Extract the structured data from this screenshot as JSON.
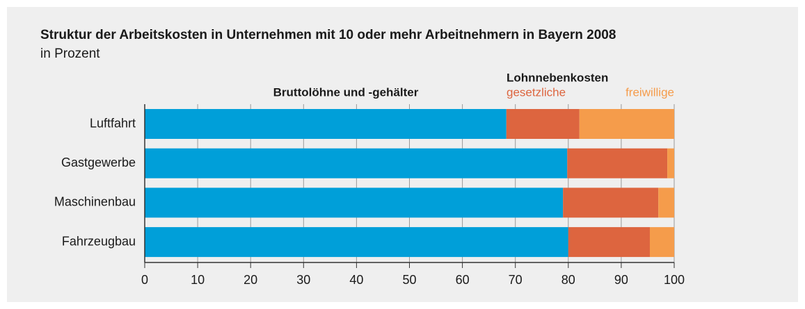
{
  "chart_data": {
    "type": "stacked-barh",
    "title": "Struktur der Arbeitskosten in Unternehmen mit 10 oder mehr Arbeitnehmern in Bayern 2008",
    "subtitle": "in Prozent",
    "legend_group": "Lohnnebenkosten",
    "categories": [
      "Luftfahrt",
      "Gastgewerbe",
      "Maschinenbau",
      "Fahrzeugbau"
    ],
    "series": [
      {
        "name": "Bruttolöhne und -gehälter",
        "color": "#009fd9",
        "values": [
          68.3,
          79.8,
          79.0,
          80.0
        ]
      },
      {
        "name": "gesetzliche",
        "color": "#dd653f",
        "values": [
          13.8,
          18.9,
          18.0,
          15.4
        ]
      },
      {
        "name": "freiwillige",
        "color": "#f59c4b",
        "values": [
          17.9,
          1.3,
          3.0,
          4.6
        ]
      }
    ],
    "xlim": [
      0,
      100
    ],
    "xticks": [
      0,
      10,
      20,
      30,
      40,
      50,
      60,
      70,
      80,
      90,
      100
    ],
    "grid": true
  }
}
